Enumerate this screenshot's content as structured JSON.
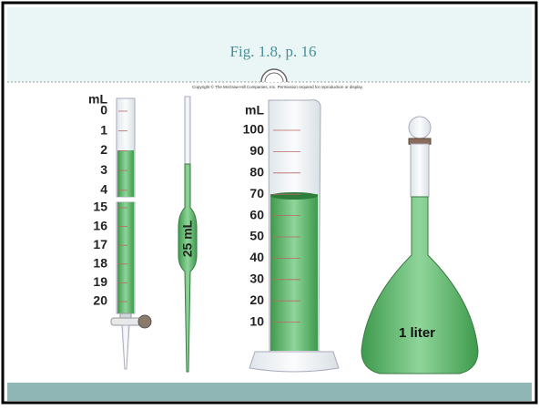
{
  "header": {
    "title": "Fig. 1.8, p. 16",
    "copyright": "Copyright © The McGraw-Hill Companies, Inc. Permission required for reproduction or display."
  },
  "burette": {
    "unit": "mL",
    "scale_upper": [
      "0",
      "1",
      "2",
      "3",
      "4"
    ],
    "scale_lower": [
      "15",
      "16",
      "17",
      "18",
      "19",
      "20"
    ]
  },
  "pipette": {
    "label": "25 mL"
  },
  "cylinder": {
    "unit": "mL",
    "scale": [
      "100",
      "90",
      "80",
      "70",
      "60",
      "50",
      "40",
      "30",
      "20",
      "10"
    ]
  },
  "flask": {
    "label": "1 liter"
  }
}
